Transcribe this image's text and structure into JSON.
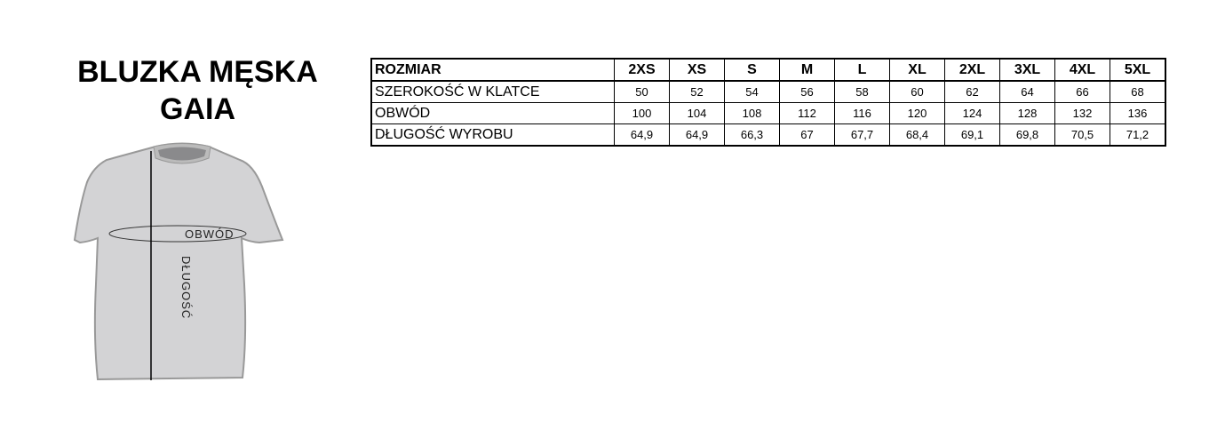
{
  "title": {
    "line1": "BLUZKA MĘSKA",
    "line2": "GAIA"
  },
  "illustration": {
    "circumference_label": "OBWÓD",
    "length_label": "DŁUGOŚĆ"
  },
  "table": {
    "header": {
      "label": "ROZMIAR",
      "sizes": [
        "2XS",
        "XS",
        "S",
        "M",
        "L",
        "XL",
        "2XL",
        "3XL",
        "4XL",
        "5XL"
      ]
    },
    "rows": [
      {
        "label": "SZEROKOŚĆ W KLATCE",
        "values": [
          "50",
          "52",
          "54",
          "56",
          "58",
          "60",
          "62",
          "64",
          "66",
          "68"
        ]
      },
      {
        "label": "OBWÓD",
        "values": [
          "100",
          "104",
          "108",
          "112",
          "116",
          "120",
          "124",
          "128",
          "132",
          "136"
        ]
      },
      {
        "label": "DŁUGOŚĆ WYROBU",
        "values": [
          "64,9",
          "64,9",
          "66,3",
          "67",
          "67,7",
          "68,4",
          "69,1",
          "69,8",
          "70,5",
          "71,2"
        ]
      }
    ]
  }
}
